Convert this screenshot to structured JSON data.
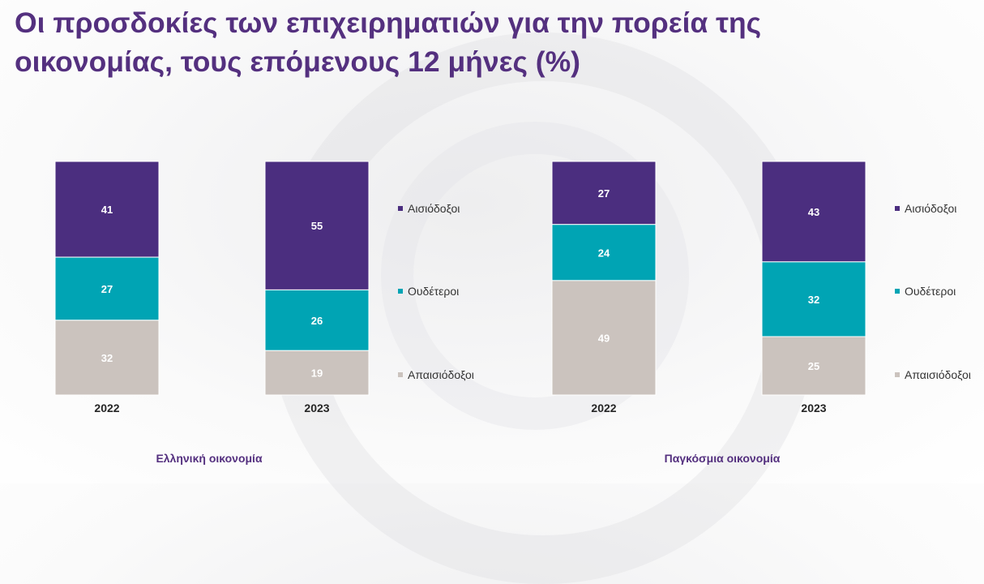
{
  "title_lines": [
    "Οι προσδοκίες των επιχειρηματιών για την πορεία της",
    "οικονομίας, τους επόμενους 12 μήνες (%)"
  ],
  "colors": {
    "Αισιόδοξοι": "#4b2e7f",
    "Ουδέτεροι": "#00a4b4",
    "Απαισιόδοξοι": "#cbc3be",
    "title": "#54307f"
  },
  "chart_data": [
    {
      "type": "bar",
      "stacked": true,
      "group_label": "Ελληνική οικονομία",
      "categories": [
        "2022",
        "2023"
      ],
      "series": [
        {
          "name": "Αισιόδοξοι",
          "values": [
            41,
            55
          ]
        },
        {
          "name": "Ουδέτεροι",
          "values": [
            27,
            26
          ]
        },
        {
          "name": "Απαισιόδοξοι",
          "values": [
            32,
            19
          ]
        }
      ],
      "legend": [
        "Αισιόδοξοι",
        "Ουδέτεροι",
        "Απαισιόδοξοι"
      ],
      "ylim": [
        0,
        100
      ]
    },
    {
      "type": "bar",
      "stacked": true,
      "group_label": "Παγκόσμια οικονομία",
      "categories": [
        "2022",
        "2023"
      ],
      "series": [
        {
          "name": "Αισιόδοξοι",
          "values": [
            27,
            43
          ]
        },
        {
          "name": "Ουδέτεροι",
          "values": [
            24,
            32
          ]
        },
        {
          "name": "Απαισιόδοξοι",
          "values": [
            49,
            25
          ]
        }
      ],
      "legend": [
        "Αισιόδοξοι",
        "Ουδέτεροι",
        "Απαισιόδοξοι"
      ],
      "ylim": [
        0,
        100
      ]
    }
  ]
}
